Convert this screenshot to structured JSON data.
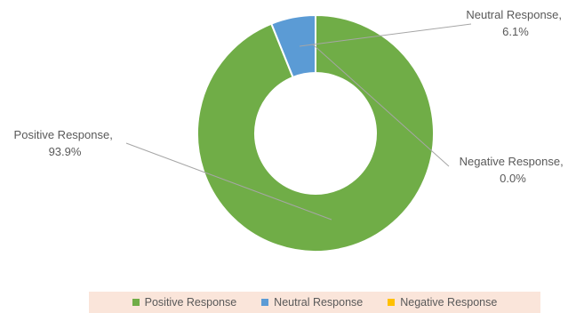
{
  "chart_data": {
    "type": "pie",
    "style": "donut",
    "categories": [
      "Positive Response",
      "Neutral Response",
      "Negative Response"
    ],
    "values": [
      93.9,
      6.1,
      0.0
    ],
    "value_labels": [
      "93.9%",
      "6.1%",
      "0.0%"
    ],
    "data_labels": [
      {
        "name": "Positive Response,",
        "value": "93.9%"
      },
      {
        "name": "Neutral Response,",
        "value": "6.1%"
      },
      {
        "name": "Negative Response,",
        "value": "0.0%"
      }
    ],
    "colors": [
      "#70ad47",
      "#5b9bd5",
      "#ffc000"
    ],
    "legend_position": "bottom",
    "legend": [
      {
        "label": "Positive Response",
        "color": "#70ad47"
      },
      {
        "label": "Neutral Response",
        "color": "#5b9bd5"
      },
      {
        "label": "Negative Response",
        "color": "#ffc000"
      }
    ]
  }
}
